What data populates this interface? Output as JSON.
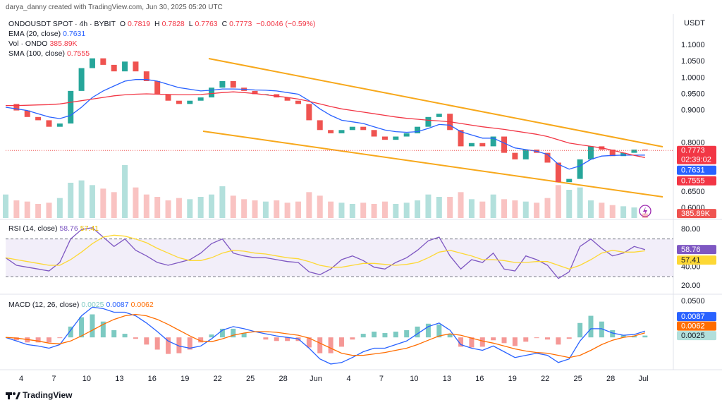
{
  "header": {
    "attribution": "darya_danny created with TradingView.com, Jun 30, 2025 05:20 UTC"
  },
  "footer": {
    "brand": "TradingView"
  },
  "chart_data": [
    {
      "type": "candlestick",
      "title": "ONDOUSDT SPOT · 4h · BYBIT",
      "ohlc": [
        {
          "name": "O",
          "value": 0.7819
        },
        {
          "name": "H",
          "value": 0.7828
        },
        {
          "name": "L",
          "value": 0.7763
        },
        {
          "name": "C",
          "value": 0.7773
        }
      ],
      "change": {
        "value": -0.0046,
        "label": "−0.0046"
      },
      "change_pct": {
        "value": -0.59,
        "label": "(−0.59%)"
      },
      "y_axis_label": "USDT",
      "countdown": "02:39:02",
      "ylim": [
        0.57,
        1.2
      ],
      "yticks": [
        {
          "value": 1.1,
          "label": "1.1000"
        },
        {
          "value": 1.05,
          "label": "1.0500"
        },
        {
          "value": 1.0,
          "label": "1.0000"
        },
        {
          "value": 0.95,
          "label": "0.9500"
        },
        {
          "value": 0.9,
          "label": "0.9000"
        },
        {
          "value": 0.8,
          "label": "0.8000"
        },
        {
          "value": 0.65,
          "label": "0.6500"
        },
        {
          "value": 0.6,
          "label": "0.6000"
        }
      ],
      "x_labels": [
        "4",
        "7",
        "10",
        "13",
        "16",
        "19",
        "22",
        "25",
        "28",
        "Jun",
        "4",
        "7",
        "10",
        "13",
        "16",
        "19",
        "22",
        "25",
        "28",
        "Jul"
      ],
      "grid": false,
      "up_color": "#26a69a",
      "down_color": "#ef5350",
      "close": [
        0.92,
        0.9,
        0.88,
        0.87,
        0.85,
        0.86,
        0.96,
        1.03,
        1.06,
        1.04,
        1.02,
        1.05,
        1.02,
        0.99,
        0.95,
        0.93,
        0.92,
        0.93,
        0.94,
        0.97,
        0.99,
        0.97,
        0.96,
        0.95,
        0.95,
        0.94,
        0.93,
        0.92,
        0.87,
        0.84,
        0.83,
        0.84,
        0.85,
        0.84,
        0.82,
        0.81,
        0.82,
        0.83,
        0.85,
        0.88,
        0.89,
        0.84,
        0.79,
        0.8,
        0.79,
        0.82,
        0.77,
        0.75,
        0.78,
        0.77,
        0.74,
        0.68,
        0.69,
        0.75,
        0.79,
        0.78,
        0.76,
        0.77,
        0.78,
        0.7773
      ],
      "series": [
        {
          "name": "EMA (20, close)",
          "color": "#2962ff",
          "values": [
            0.91,
            0.905,
            0.9,
            0.89,
            0.88,
            0.875,
            0.885,
            0.91,
            0.94,
            0.96,
            0.975,
            0.99,
            0.995,
            0.995,
            0.99,
            0.98,
            0.97,
            0.965,
            0.96,
            0.962,
            0.966,
            0.966,
            0.965,
            0.963,
            0.962,
            0.96,
            0.955,
            0.95,
            0.93,
            0.905,
            0.885,
            0.87,
            0.865,
            0.86,
            0.85,
            0.84,
            0.835,
            0.833,
            0.835,
            0.845,
            0.857,
            0.855,
            0.835,
            0.825,
            0.815,
            0.815,
            0.8,
            0.785,
            0.78,
            0.775,
            0.765,
            0.735,
            0.72,
            0.73,
            0.75,
            0.76,
            0.762,
            0.763,
            0.763,
            0.7631
          ]
        },
        {
          "name": "SMA (100, close)",
          "color": "#f23645",
          "values": [
            0.915,
            0.915,
            0.916,
            0.917,
            0.918,
            0.92,
            0.925,
            0.93,
            0.935,
            0.94,
            0.945,
            0.948,
            0.95,
            0.951,
            0.95,
            0.949,
            0.948,
            0.948,
            0.949,
            0.952,
            0.955,
            0.957,
            0.955,
            0.952,
            0.948,
            0.944,
            0.94,
            0.935,
            0.928,
            0.92,
            0.912,
            0.905,
            0.9,
            0.895,
            0.89,
            0.885,
            0.88,
            0.876,
            0.873,
            0.87,
            0.868,
            0.865,
            0.86,
            0.855,
            0.85,
            0.846,
            0.842,
            0.837,
            0.832,
            0.827,
            0.82,
            0.81,
            0.8,
            0.795,
            0.79,
            0.785,
            0.778,
            0.77,
            0.762,
            0.7555
          ]
        }
      ],
      "volume": {
        "name": "Vol · ONDO",
        "last_value_label": "385.89K",
        "values": [
          2000000,
          1500000,
          1400000,
          1200000,
          1300000,
          1700000,
          3000000,
          3200000,
          2800000,
          2500000,
          2200000,
          4500000,
          2600000,
          2000000,
          1800000,
          1500000,
          1700000,
          1600000,
          1800000,
          2000000,
          2700000,
          1900000,
          1600000,
          1500000,
          1400000,
          1500000,
          1300000,
          1400000,
          2200000,
          1900000,
          1400000,
          1300000,
          1200000,
          1300000,
          1200000,
          1400000,
          1200000,
          1300000,
          1500000,
          2000000,
          1800000,
          1800000,
          2200000,
          1600000,
          1400000,
          2000000,
          1600000,
          1500000,
          1400000,
          1300000,
          1700000,
          2800000,
          2400000,
          2600000,
          1500000,
          1300000,
          1100000,
          1000000,
          900000,
          385890
        ]
      }
    },
    {
      "type": "rsi",
      "title": "RSI (14, close)",
      "ylim": [
        12,
        90
      ],
      "yticks": [
        {
          "value": 80,
          "label": "80.00"
        },
        {
          "value": 40,
          "label": "40.00"
        },
        {
          "value": 20,
          "label": "20.00"
        }
      ],
      "bands": [
        30,
        70
      ],
      "series": [
        {
          "color": "#7e57c2",
          "values": [
            50,
            42,
            40,
            38,
            36,
            45,
            70,
            80,
            82,
            72,
            62,
            70,
            58,
            52,
            45,
            42,
            45,
            48,
            55,
            65,
            70,
            55,
            52,
            50,
            50,
            48,
            46,
            45,
            35,
            32,
            38,
            48,
            52,
            47,
            40,
            38,
            45,
            50,
            58,
            68,
            72,
            52,
            38,
            48,
            45,
            55,
            38,
            36,
            52,
            48,
            42,
            28,
            35,
            62,
            70,
            60,
            52,
            55,
            62,
            58.76
          ]
        },
        {
          "color": "#fdd835",
          "values": [
            50,
            48,
            46,
            44,
            42,
            42,
            48,
            56,
            65,
            72,
            74,
            73,
            70,
            66,
            60,
            55,
            50,
            47,
            47,
            50,
            55,
            58,
            57,
            55,
            54,
            52,
            50,
            49,
            46,
            42,
            40,
            40,
            42,
            44,
            44,
            43,
            42,
            43,
            45,
            50,
            56,
            58,
            55,
            52,
            48,
            48,
            47,
            45,
            45,
            46,
            46,
            42,
            38,
            42,
            48,
            55,
            58,
            56,
            56,
            57.41
          ]
        }
      ]
    },
    {
      "type": "macd",
      "title": "MACD (12, 26, close)",
      "ylim": [
        -0.043,
        0.059
      ],
      "yticks": [
        {
          "value": 0.05,
          "label": "0.0500"
        }
      ],
      "histogram": {
        "up_color": "#26a69a",
        "down_color": "#ef5350",
        "values": [
          0,
          -0.004,
          -0.007,
          -0.007,
          -0.007,
          -0.001,
          0.015,
          0.028,
          0.032,
          0.022,
          0.01,
          0.005,
          -0.002,
          -0.01,
          -0.017,
          -0.023,
          -0.022,
          -0.017,
          -0.007,
          0.004,
          0.012,
          0.012,
          0.006,
          0,
          -0.003,
          -0.005,
          -0.005,
          -0.005,
          -0.014,
          -0.022,
          -0.022,
          -0.013,
          -0.003,
          0.005,
          0.008,
          0.006,
          0.008,
          0.01,
          0.015,
          0.019,
          0.018,
          0.005,
          -0.013,
          -0.014,
          -0.013,
          -0.004,
          -0.008,
          -0.012,
          -0.006,
          -0.001,
          -0.003,
          -0.01,
          -0.002,
          0.02,
          0.03,
          0.022,
          0.01,
          0.003,
          0.002,
          0.0025
        ]
      },
      "series": [
        {
          "color": "#2962ff",
          "values": [
            0,
            -0.005,
            -0.01,
            -0.012,
            -0.015,
            -0.01,
            0.01,
            0.03,
            0.042,
            0.04,
            0.035,
            0.035,
            0.03,
            0.02,
            0.008,
            -0.005,
            -0.012,
            -0.015,
            -0.012,
            -0.002,
            0.01,
            0.015,
            0.012,
            0.008,
            0.005,
            0.002,
            0,
            -0.002,
            -0.015,
            -0.03,
            -0.037,
            -0.035,
            -0.028,
            -0.02,
            -0.015,
            -0.015,
            -0.01,
            -0.005,
            0.005,
            0.015,
            0.02,
            0.01,
            -0.01,
            -0.015,
            -0.018,
            -0.012,
            -0.02,
            -0.028,
            -0.025,
            -0.022,
            -0.025,
            -0.035,
            -0.03,
            -0.005,
            0.012,
            0.012,
            0.006,
            0.003,
            0.004,
            0.0087
          ]
        },
        {
          "color": "#ff6d00",
          "values": [
            0,
            -0.001,
            -0.003,
            -0.005,
            -0.008,
            -0.009,
            -0.005,
            0.002,
            0.01,
            0.018,
            0.025,
            0.03,
            0.032,
            0.03,
            0.025,
            0.018,
            0.01,
            0.002,
            -0.005,
            -0.006,
            -0.002,
            0.003,
            0.006,
            0.008,
            0.008,
            0.007,
            0.005,
            0.003,
            -0.001,
            -0.008,
            -0.015,
            -0.022,
            -0.025,
            -0.025,
            -0.023,
            -0.021,
            -0.018,
            -0.015,
            -0.01,
            -0.004,
            0.002,
            0.005,
            0.003,
            -0.001,
            -0.005,
            -0.008,
            -0.012,
            -0.016,
            -0.019,
            -0.021,
            -0.022,
            -0.025,
            -0.028,
            -0.025,
            -0.018,
            -0.01,
            -0.004,
            0,
            0.002,
            0.0062
          ]
        }
      ]
    }
  ]
}
